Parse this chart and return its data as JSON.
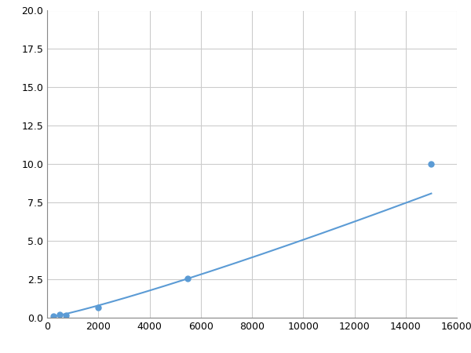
{
  "x": [
    250,
    500,
    750,
    2000,
    5500,
    15000
  ],
  "y": [
    0.1,
    0.2,
    0.15,
    0.65,
    2.55,
    10.0
  ],
  "line_color": "#5b9bd5",
  "marker_color": "#5b9bd5",
  "marker_size": 5,
  "xlim": [
    0,
    16000
  ],
  "ylim": [
    0,
    20.0
  ],
  "xticks": [
    0,
    2000,
    4000,
    6000,
    8000,
    10000,
    12000,
    14000,
    16000
  ],
  "yticks": [
    0.0,
    2.5,
    5.0,
    7.5,
    10.0,
    12.5,
    15.0,
    17.5,
    20.0
  ],
  "grid": true,
  "background_color": "#ffffff",
  "grid_color": "#cccccc"
}
